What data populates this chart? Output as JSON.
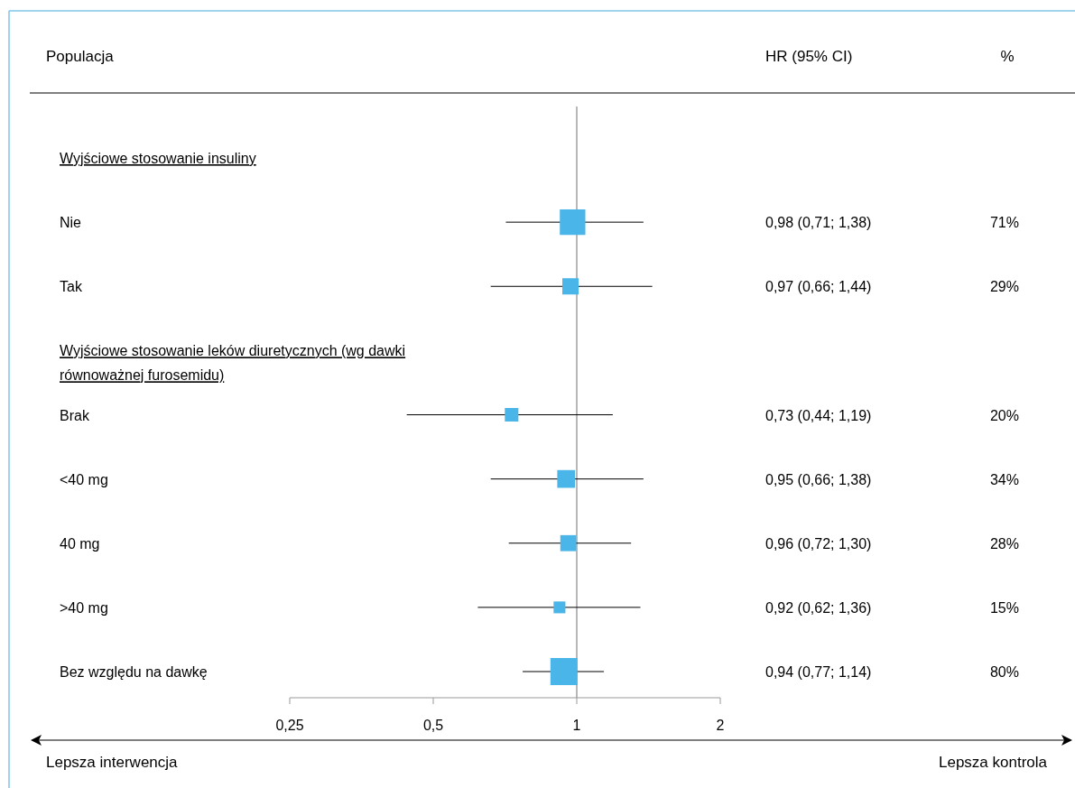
{
  "chart_data": {
    "type": "scatter",
    "orientation": "horizontal",
    "marker": "square",
    "color": "#4ab5e8",
    "ylabel": "Populacja",
    "categories": [
      "Wyjściowe stosowanie insuliny",
      "Nie",
      "Tak",
      "Wyjściowe stosowanie leków diuretycznych (wg dawki równoważnej furosemidu)",
      "Brak",
      "<40 mg",
      "40 mg",
      ">40 mg",
      "Bez względu na dawkę"
    ],
    "values": [
      null,
      0.98,
      0.97,
      null,
      0.73,
      0.95,
      0.96,
      0.92,
      0.94
    ],
    "errors": [
      null,
      [
        0.71,
        1.38
      ],
      [
        0.66,
        1.44
      ],
      null,
      [
        0.44,
        1.19
      ],
      [
        0.66,
        1.38
      ],
      [
        0.72,
        1.3
      ],
      [
        0.62,
        1.36
      ],
      [
        0.77,
        1.14
      ]
    ],
    "value_labels": [
      null,
      "0,98 (0,71; 1,38)",
      "0,97 (0,66; 1,44)",
      null,
      "0,73 (0,44; 1,19)",
      "0,95 (0,66; 1,38)",
      "0,96 (0,72; 1,30)",
      "0,92 (0,62; 1,36)",
      "0,94 (0,77; 1,14)"
    ],
    "sizes": [
      null,
      0.89,
      0.36,
      null,
      0.25,
      0.43,
      0.35,
      0.19,
      1
    ],
    "log": "x",
    "xlim": [
      0.25,
      2
    ],
    "xticks": [
      {
        "value": 0.25,
        "label": "0,25"
      },
      {
        "value": 0.5,
        "label": "0,5"
      },
      1,
      2
    ],
    "ref_lines": [
      {
        "axis": "x",
        "value": 1,
        "color": "#888888"
      }
    ],
    "annotations": [
      "HR (95% CI)",
      "%",
      "Lepsza interwencja",
      "Lepsza kontrola",
      "71%",
      "29%",
      "20%",
      "34%",
      "28%",
      "15%",
      "80%"
    ]
  }
}
